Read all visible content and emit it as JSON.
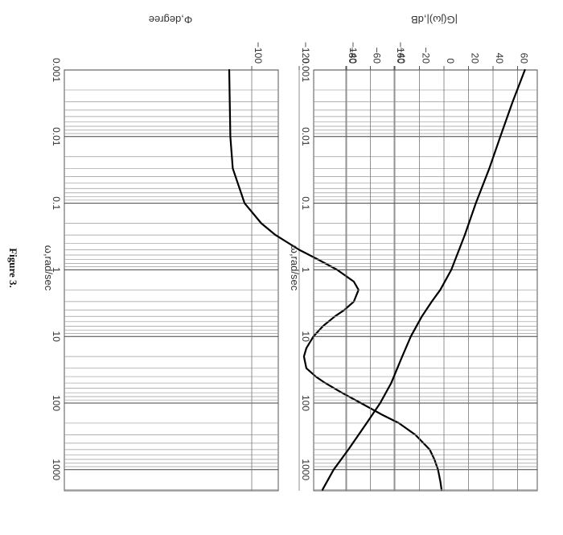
{
  "caption": "Figure 3.",
  "chart_data": [
    {
      "type": "line",
      "title": "",
      "xlabel": "ω,rad/sec",
      "ylabel": "|G(jω)|,dB",
      "x_scale": "log",
      "xlim": [
        0.001,
        2000
      ],
      "ylim": [
        -100,
        70
      ],
      "x_ticks": [
        0.001,
        0.01,
        0.1,
        1,
        10,
        100,
        1000
      ],
      "x_tick_labels": [
        "0.001",
        "0.01",
        "0.1",
        "1",
        "10",
        "100",
        "1000"
      ],
      "y_ticks": [
        -80,
        -60,
        -40,
        -20,
        0,
        20,
        40,
        60
      ],
      "y_tick_labels": [
        "−80",
        "−60",
        "−40",
        "−20",
        "0",
        "20",
        "40",
        "60"
      ],
      "grid": true,
      "series": [
        {
          "x": [
            0.001,
            0.003,
            0.01,
            0.03,
            0.1,
            0.3,
            1,
            2,
            3,
            5,
            10,
            20,
            50,
            100,
            200,
            500,
            1000,
            2000
          ],
          "y": [
            66,
            56,
            46,
            37,
            26,
            17,
            6,
            -3,
            -10,
            -18,
            -27,
            -34,
            -43,
            -52,
            -63,
            -78,
            -90,
            -99
          ]
        }
      ]
    },
    {
      "type": "line",
      "title": "",
      "xlabel": "ω,rad/sec",
      "ylabel": "Φ,degree",
      "x_scale": "log",
      "xlim": [
        0.001,
        2000
      ],
      "ylim": [
        -180,
        -90
      ],
      "x_ticks": [
        0.001,
        0.01,
        0.1,
        1,
        10,
        100,
        1000
      ],
      "x_tick_labels": [
        "0.001",
        "0.01",
        "0.1",
        "1",
        "10",
        "100",
        "1000"
      ],
      "y_ticks": [
        -160,
        -140,
        -120,
        -100
      ],
      "y_tick_labels": [
        "−160",
        "−140",
        "−120",
        "−100"
      ],
      "grid": true,
      "series": [
        {
          "x": [
            0.001,
            0.01,
            0.03,
            0.1,
            0.2,
            0.3,
            0.5,
            0.7,
            1,
            1.5,
            2,
            3,
            4,
            5,
            7,
            10,
            15,
            20,
            30,
            40,
            50,
            70,
            100,
            150,
            200,
            300,
            500,
            700,
            1000,
            1500,
            2000
          ],
          "y": [
            -90.5,
            -91,
            -92,
            -97,
            -104,
            -110,
            -120,
            -128,
            -136,
            -143,
            -145,
            -143,
            -139,
            -135,
            -130,
            -126,
            -123,
            -122,
            -123,
            -127,
            -131,
            -138,
            -146,
            -155,
            -162,
            -169,
            -175,
            -177,
            -178.5,
            -179.5,
            -180
          ]
        }
      ]
    }
  ]
}
